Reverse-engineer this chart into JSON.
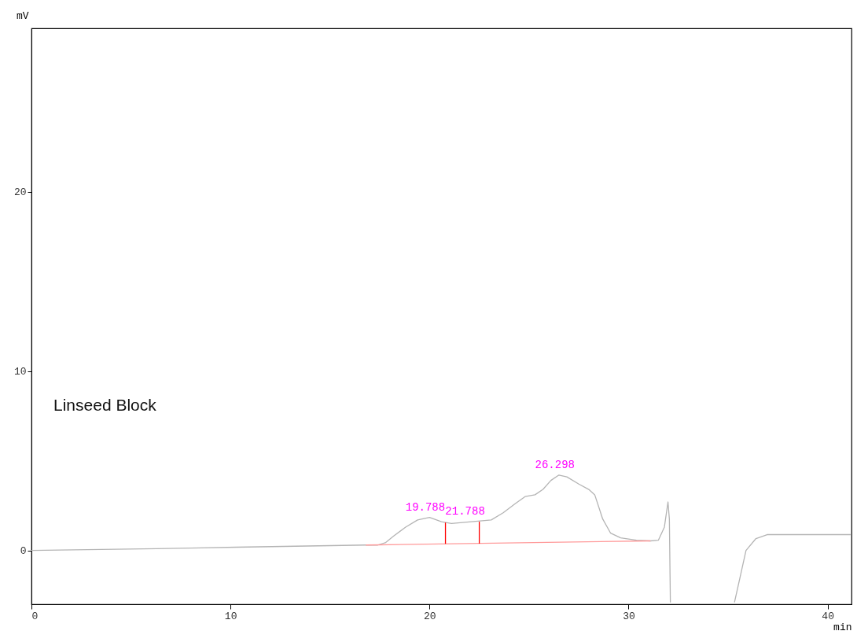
{
  "chart_data": {
    "type": "line",
    "xlabel": "min",
    "ylabel": "mV",
    "xlim": [
      0,
      41.2
    ],
    "ylim": [
      -3,
      29.1
    ],
    "xticks": [
      0,
      10,
      20,
      30,
      40
    ],
    "yticks": [
      0,
      10,
      20
    ],
    "series": [
      {
        "color": "#b4b4b4",
        "x": [
          0,
          6.3,
          10.3,
          16.8,
          17.4,
          17.8,
          18.2,
          18.8,
          19.4,
          20.0,
          20.6,
          21.1,
          22.1,
          23.1,
          23.7,
          24.3,
          24.8,
          25.3,
          25.7,
          26.1,
          26.5,
          26.9,
          27.5,
          28.0,
          28.3,
          28.7,
          29.1,
          29.6,
          30.4,
          31.1,
          31.5,
          31.8,
          31.98,
          32.05,
          32.1,
          33.7,
          35.32,
          35.6,
          35.9,
          36.4,
          36.96,
          37.9,
          41.2
        ],
        "values": [
          0,
          0.1,
          0.18,
          0.3,
          0.3,
          0.44,
          0.8,
          1.3,
          1.7,
          1.84,
          1.6,
          1.5,
          1.6,
          1.7,
          2.1,
          2.6,
          3.0,
          3.1,
          3.4,
          3.9,
          4.2,
          4.1,
          3.7,
          3.4,
          3.1,
          1.75,
          0.96,
          0.7,
          0.57,
          0.53,
          0.57,
          1.3,
          2.7,
          1.75,
          -2.9,
          null,
          -2.9,
          -1.5,
          0,
          0.66,
          0.88,
          0.88,
          0.88
        ]
      },
      {
        "color": "#ff9a9a",
        "x": [
          16.8,
          31.1
        ],
        "values": [
          0.3,
          0.53
        ]
      },
      {
        "color": "#ff0000",
        "x": [
          20.8,
          20.8
        ],
        "values": [
          0.37,
          1.55
        ]
      },
      {
        "color": "#ff0000",
        "x": [
          22.5,
          22.5
        ],
        "values": [
          0.38,
          1.6
        ]
      }
    ],
    "annotations": [
      {
        "text": "19.788",
        "x": 19.788,
        "y": 1.84
      },
      {
        "text": "21.788",
        "x": 21.788,
        "y": 1.6
      },
      {
        "text": "26.298",
        "x": 26.298,
        "y": 4.2
      },
      "Linseed Block"
    ]
  }
}
